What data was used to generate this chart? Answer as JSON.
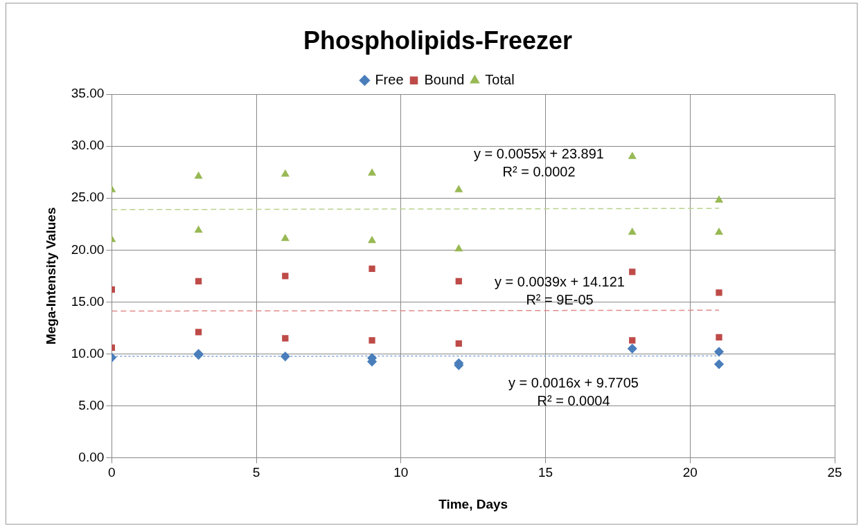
{
  "chart_data": {
    "type": "scatter",
    "title": "Phospholipids-Freezer",
    "xlabel": "Time, Days",
    "ylabel": "Mega-Intensity Values",
    "xlim": [
      0,
      25
    ],
    "xticks": [
      0,
      5,
      10,
      15,
      20,
      25
    ],
    "ylim": [
      0,
      35
    ],
    "yticks": [
      {
        "value": 0,
        "label": "0.00"
      },
      {
        "value": 5,
        "label": "5.00"
      },
      {
        "value": 10,
        "label": "10.00"
      },
      {
        "value": 15,
        "label": "15.00"
      },
      {
        "value": 20,
        "label": "20.00"
      },
      {
        "value": 25,
        "label": "25.00"
      },
      {
        "value": 30,
        "label": "30.00"
      },
      {
        "value": 35,
        "label": "35.00"
      }
    ],
    "grid": true,
    "legend": "top",
    "series": [
      {
        "name": "Free",
        "color": "#4a7ebb",
        "marker": "diamond",
        "x": [
          0,
          3,
          3,
          6,
          9,
          9,
          12,
          12,
          18,
          21,
          21
        ],
        "values": [
          9.65,
          10.0,
          9.9,
          9.75,
          9.6,
          9.25,
          9.1,
          8.9,
          10.5,
          10.2,
          9.0
        ]
      },
      {
        "name": "Bound",
        "color": "#be4b48",
        "marker": "square",
        "x": [
          0,
          0,
          3,
          3,
          6,
          6,
          9,
          9,
          12,
          12,
          18,
          18,
          21,
          21
        ],
        "values": [
          16.2,
          10.6,
          17.0,
          12.1,
          17.5,
          11.5,
          18.2,
          11.3,
          17.0,
          11.0,
          17.9,
          11.3,
          15.9,
          11.6
        ]
      },
      {
        "name": "Total",
        "color": "#98b954",
        "marker": "triangle",
        "x": [
          0,
          0,
          3,
          3,
          6,
          6,
          9,
          9,
          12,
          12,
          18,
          18,
          21,
          21
        ],
        "values": [
          25.8,
          21.0,
          27.1,
          21.9,
          27.3,
          21.1,
          27.4,
          20.9,
          25.8,
          20.1,
          29.0,
          21.7,
          24.8,
          21.7
        ]
      },
      {
        "type": "line",
        "color": "#b9d18d",
        "marker": "none",
        "line_style": "dashed",
        "x": [
          0,
          21
        ],
        "values": [
          23.89,
          24.01
        ]
      },
      {
        "type": "line",
        "color": "#e08b88",
        "marker": "none",
        "line_style": "dashed",
        "x": [
          0,
          21
        ],
        "values": [
          14.12,
          14.2
        ]
      },
      {
        "type": "line",
        "color": "#7ea3d6",
        "marker": "none",
        "line_style": "dotted",
        "x": [
          0,
          21
        ],
        "values": [
          9.77,
          9.8
        ]
      }
    ],
    "annotations": [
      "y = 0.0055x + 23.891\nR² = 0.0002",
      "y = 0.0039x + 14.121\nR² = 9E-05",
      "y = 0.0016x + 9.7705\nR² = 0.0004"
    ]
  }
}
